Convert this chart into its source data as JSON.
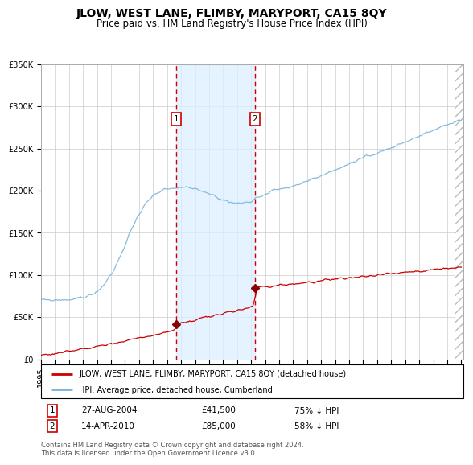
{
  "title": "JLOW, WEST LANE, FLIMBY, MARYPORT, CA15 8QY",
  "subtitle": "Price paid vs. HM Land Registry's House Price Index (HPI)",
  "ylim": [
    0,
    350000
  ],
  "yticks": [
    0,
    50000,
    100000,
    150000,
    200000,
    250000,
    300000,
    350000
  ],
  "ytick_labels": [
    "£0",
    "£50K",
    "£100K",
    "£150K",
    "£200K",
    "£250K",
    "£300K",
    "£350K"
  ],
  "year_start": 1995,
  "year_end": 2025,
  "hpi_color": "#7ab4d8",
  "price_color": "#cc0000",
  "marker_color": "#8b0000",
  "bg_shade_color": "#ddeeff",
  "vline_color": "#cc0000",
  "transaction1": {
    "date_num": 2004.65,
    "price": 41500,
    "label": "1",
    "date_str": "27-AUG-2004",
    "hpi_pct": "75% ↓ HPI"
  },
  "transaction2": {
    "date_num": 2010.28,
    "price": 85000,
    "label": "2",
    "date_str": "14-APR-2010",
    "hpi_pct": "58% ↓ HPI"
  },
  "legend_line1": "JLOW, WEST LANE, FLIMBY, MARYPORT, CA15 8QY (detached house)",
  "legend_line2": "HPI: Average price, detached house, Cumberland",
  "footer": "Contains HM Land Registry data © Crown copyright and database right 2024.\nThis data is licensed under the Open Government Licence v3.0.",
  "hatch_color": "#bbbbbb",
  "grid_color": "#cccccc",
  "title_fontsize": 10,
  "subtitle_fontsize": 8.5,
  "tick_fontsize": 7
}
